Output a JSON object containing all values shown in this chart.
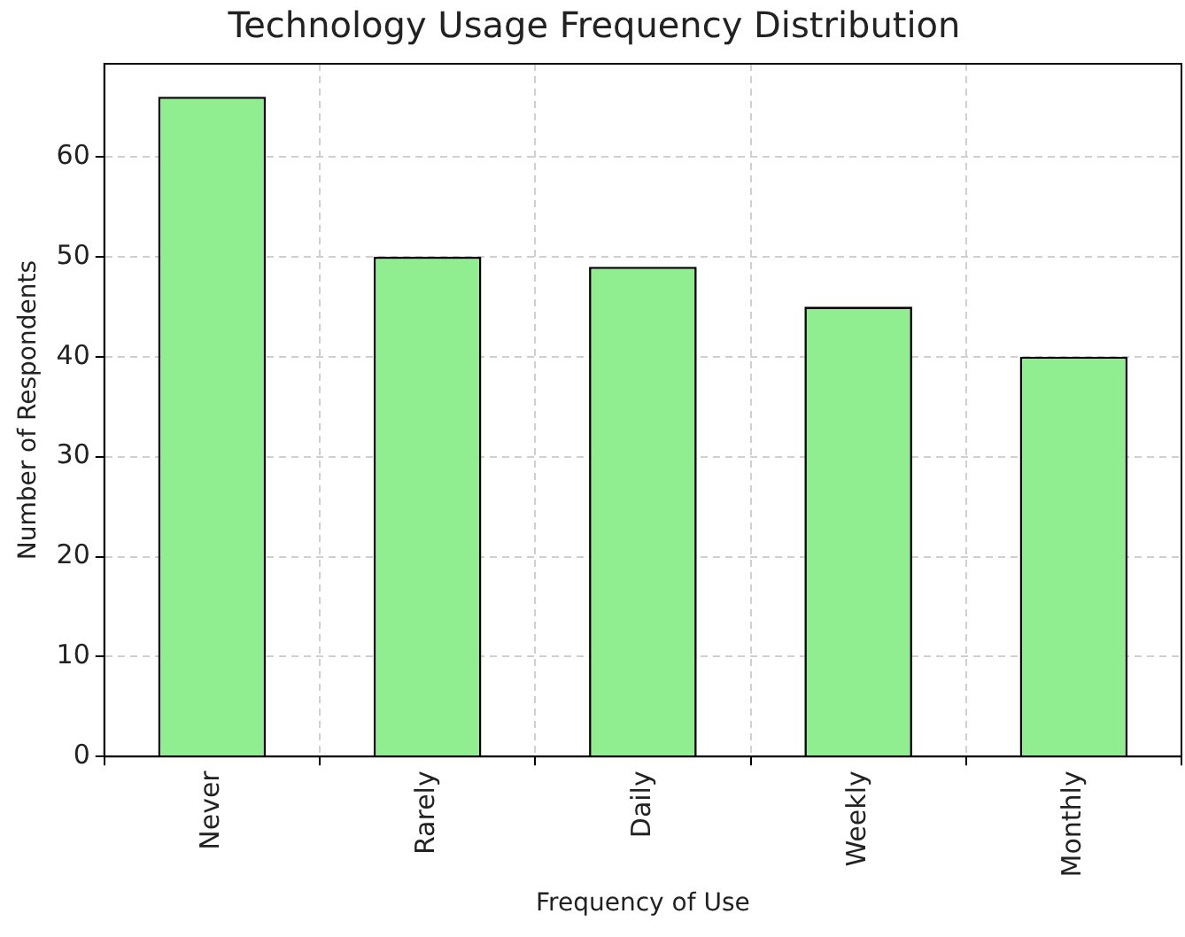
{
  "chart_data": {
    "type": "bar",
    "title": "Technology Usage Frequency Distribution",
    "xlabel": "Frequency of Use",
    "ylabel": "Number of Respondents",
    "categories": [
      "Never",
      "Rarely",
      "Daily",
      "Weekly",
      "Monthly"
    ],
    "values": [
      66,
      50,
      49,
      45,
      40
    ],
    "color": "#90ee90",
    "ylim": [
      0,
      69.3
    ],
    "yticks": [
      0,
      10,
      20,
      30,
      40,
      50,
      60
    ],
    "grid": true,
    "legend": false
  }
}
